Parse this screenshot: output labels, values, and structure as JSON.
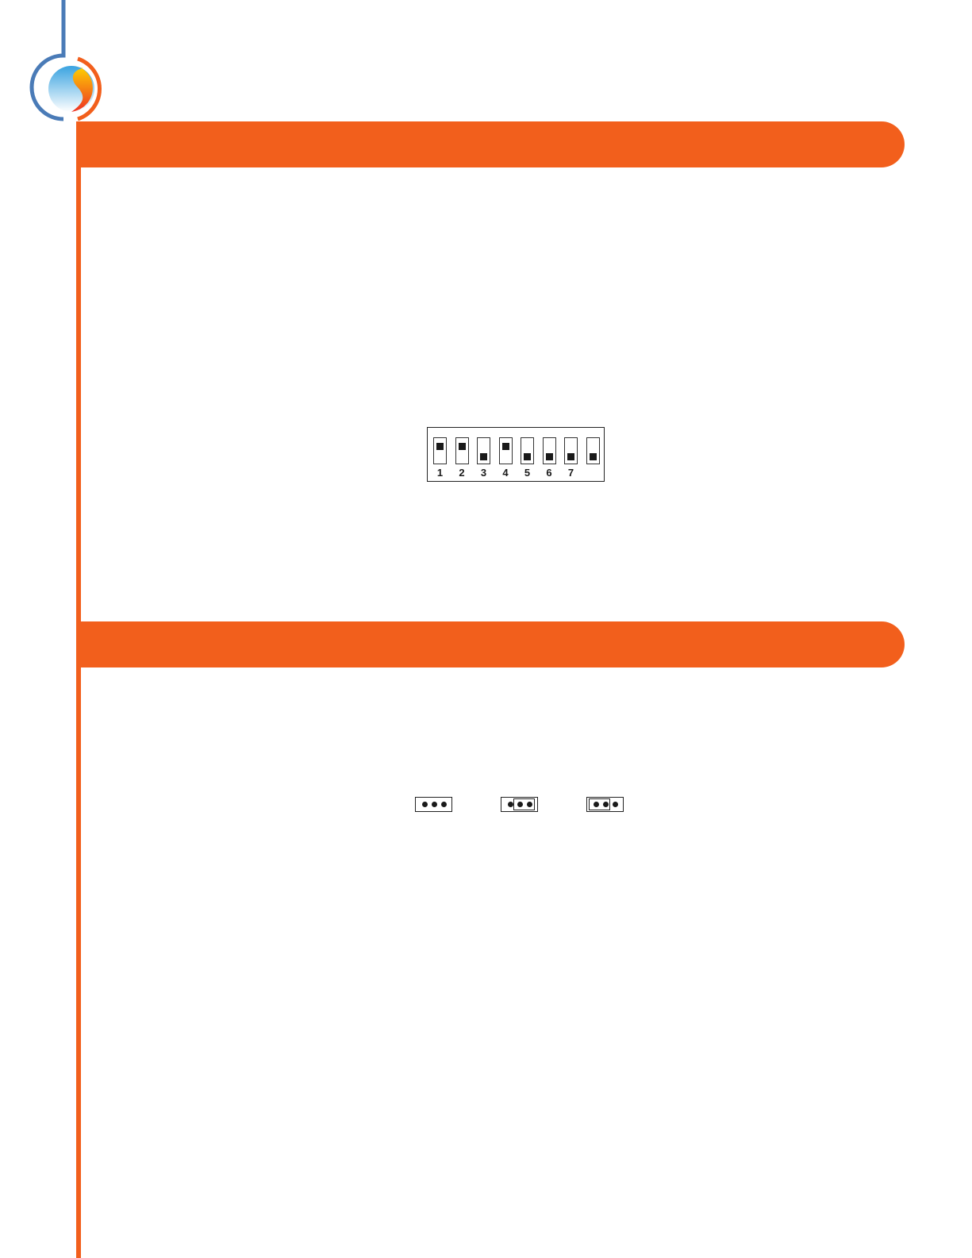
{
  "colors": {
    "accent": "#f25f1c",
    "logo_blue": "#4a7bb7"
  },
  "dip_switch": {
    "switches": [
      {
        "label": "1",
        "state": "up"
      },
      {
        "label": "2",
        "state": "up"
      },
      {
        "label": "3",
        "state": "down"
      },
      {
        "label": "4",
        "state": "up"
      },
      {
        "label": "5",
        "state": "down"
      },
      {
        "label": "6",
        "state": "down"
      },
      {
        "label": "7",
        "state": "down"
      },
      {
        "label": "",
        "state": "down"
      }
    ]
  },
  "jumpers": [
    {
      "shunt": "none"
    },
    {
      "shunt": "pins-2-3"
    },
    {
      "shunt": "pins-1-2"
    }
  ]
}
